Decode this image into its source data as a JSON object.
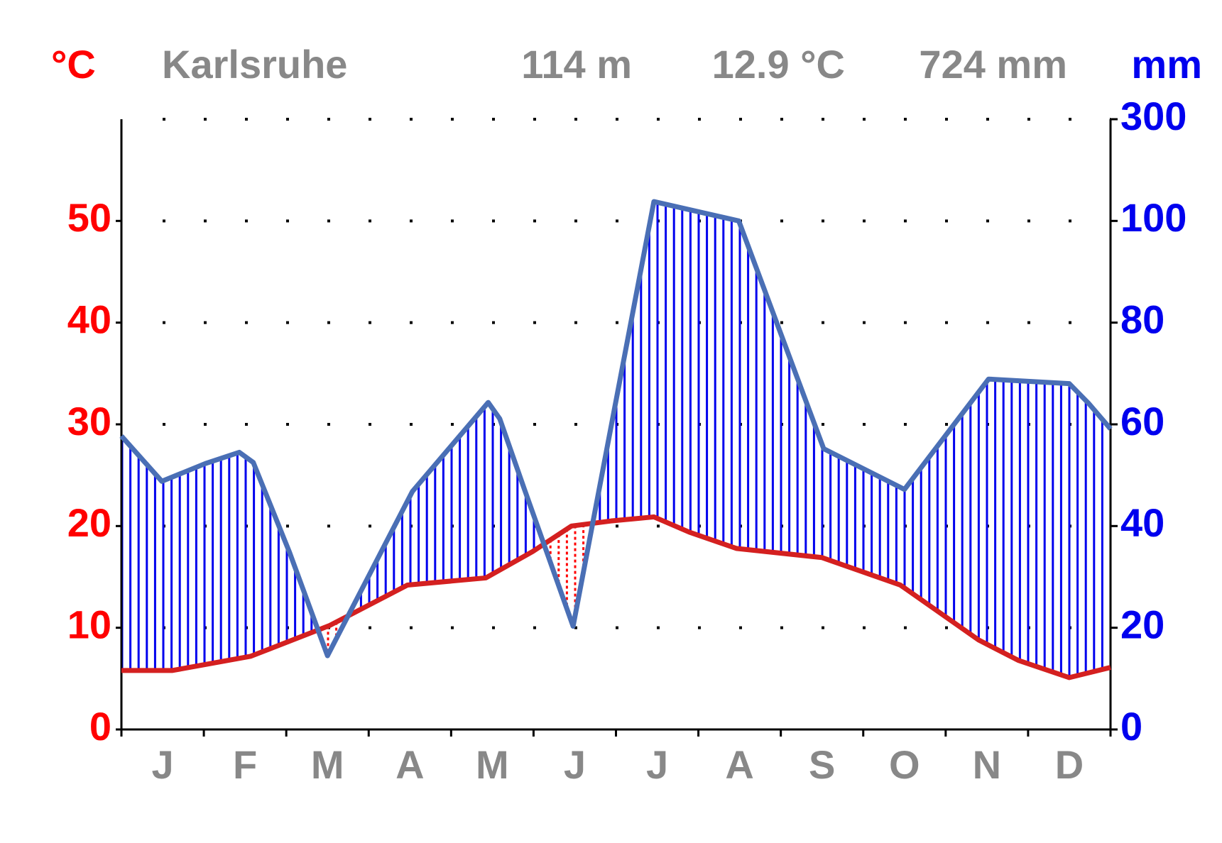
{
  "chart_data": {
    "type": "climate",
    "title": "Karlsruhe",
    "elevation": "114 m",
    "mean_temperature": "12.9 °C",
    "annual_precipitation": "724 mm",
    "y_label": "°C",
    "y2_label": "mm",
    "categories": [
      "J",
      "F",
      "M",
      "A",
      "M",
      "J",
      "J",
      "A",
      "S",
      "O",
      "N",
      "D"
    ],
    "xlim": [
      0,
      12
    ],
    "ylim": [
      0,
      60
    ],
    "yticks": [
      0,
      10,
      20,
      30,
      40,
      50
    ],
    "y2lim": [
      0,
      300
    ],
    "y2ticks": [
      0,
      20,
      40,
      60,
      80,
      100,
      300
    ],
    "grid": true,
    "series": [
      {
        "color": "#d42020",
        "x": [
          0,
          0.62,
          1.57,
          2.52,
          3.47,
          4.42,
          4.99,
          5.46,
          5.94,
          6.46,
          6.89,
          7.46,
          8.5,
          9.45,
          10.4,
          10.88,
          11.5,
          12
        ],
        "values": [
          5.8,
          5.8,
          7.2,
          10.2,
          14.2,
          14.9,
          17.5,
          20,
          20.5,
          20.9,
          19.4,
          17.8,
          16.9,
          14.2,
          8.8,
          6.8,
          5.1,
          6.1
        ]
      },
      {
        "color": "#4a6fb5",
        "axis": "y2",
        "x": [
          0,
          0.49,
          1.02,
          1.43,
          1.6,
          2.04,
          2.5,
          3.53,
          4.45,
          4.59,
          4.89,
          5.48,
          6.46,
          7.49,
          8.52,
          9.5,
          10.52,
          11.5,
          11.73,
          12
        ],
        "values": [
          57.7,
          48.8,
          52.3,
          54.5,
          52.5,
          34.8,
          14.5,
          46.8,
          64.3,
          61.1,
          47.2,
          20.3,
          138,
          100,
          55.2,
          47.2,
          68.9,
          68,
          64.2,
          59.1
        ]
      }
    ]
  }
}
